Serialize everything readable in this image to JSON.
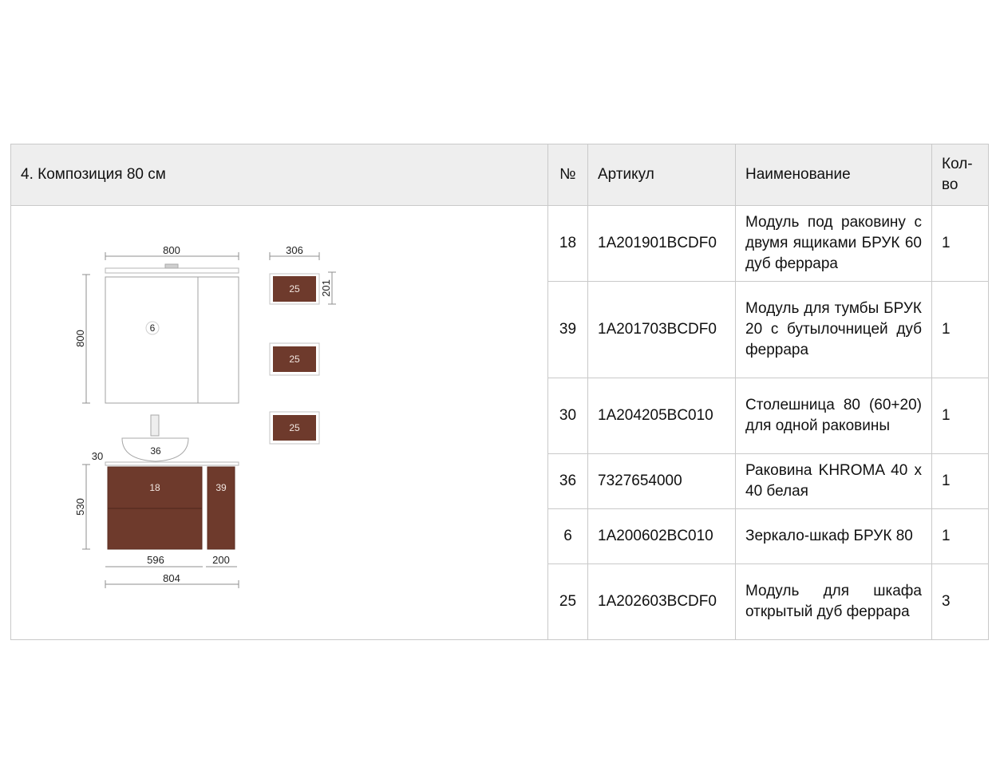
{
  "header": {
    "title": "4. Композиция 80 см",
    "col_num": "№",
    "col_article": "Артикул",
    "col_name": "Наименование",
    "col_qty": "Кол-во"
  },
  "rows": [
    {
      "num": "18",
      "article": "1A201901BCDF0",
      "name": "Модуль под раковину с двумя ящиками БРУК 60 дуб феррара",
      "qty": "1"
    },
    {
      "num": "39",
      "article": "1A201703BCDF0",
      "name": "Модуль для тумбы БРУК 20 с бутылочницей дуб феррара",
      "qty": "1"
    },
    {
      "num": "30",
      "article": "1A204205BC010",
      "name": "Столешница 80 (60+20) для одной раковины",
      "qty": "1"
    },
    {
      "num": "36",
      "article": "7327654000",
      "name": "Раковина KHROMA 40 x 40 белая",
      "qty": "1"
    },
    {
      "num": "6",
      "article": "1A200602BC010",
      "name": "Зеркало-шкаф БРУК 80",
      "qty": "1"
    },
    {
      "num": "25",
      "article": "1A202603BCDF0",
      "name": "Модуль для шкафа открытый дуб феррара",
      "qty": "3"
    }
  ],
  "drawing": {
    "colors": {
      "wood": "#6e3a2c",
      "line": "#9a9a9a"
    },
    "dims": {
      "mirror_width": "800",
      "mirror_height": "800",
      "shelf_width": "306",
      "shelf_height": "201",
      "top_thickness": "30",
      "cabinet_height": "530",
      "base_left_width": "596",
      "base_right_width": "200",
      "base_total_width": "804"
    },
    "labels": {
      "mirror": "6",
      "sink": "36",
      "base_left": "18",
      "base_right": "39",
      "shelf_1": "25",
      "shelf_2": "25",
      "shelf_3": "25"
    }
  }
}
